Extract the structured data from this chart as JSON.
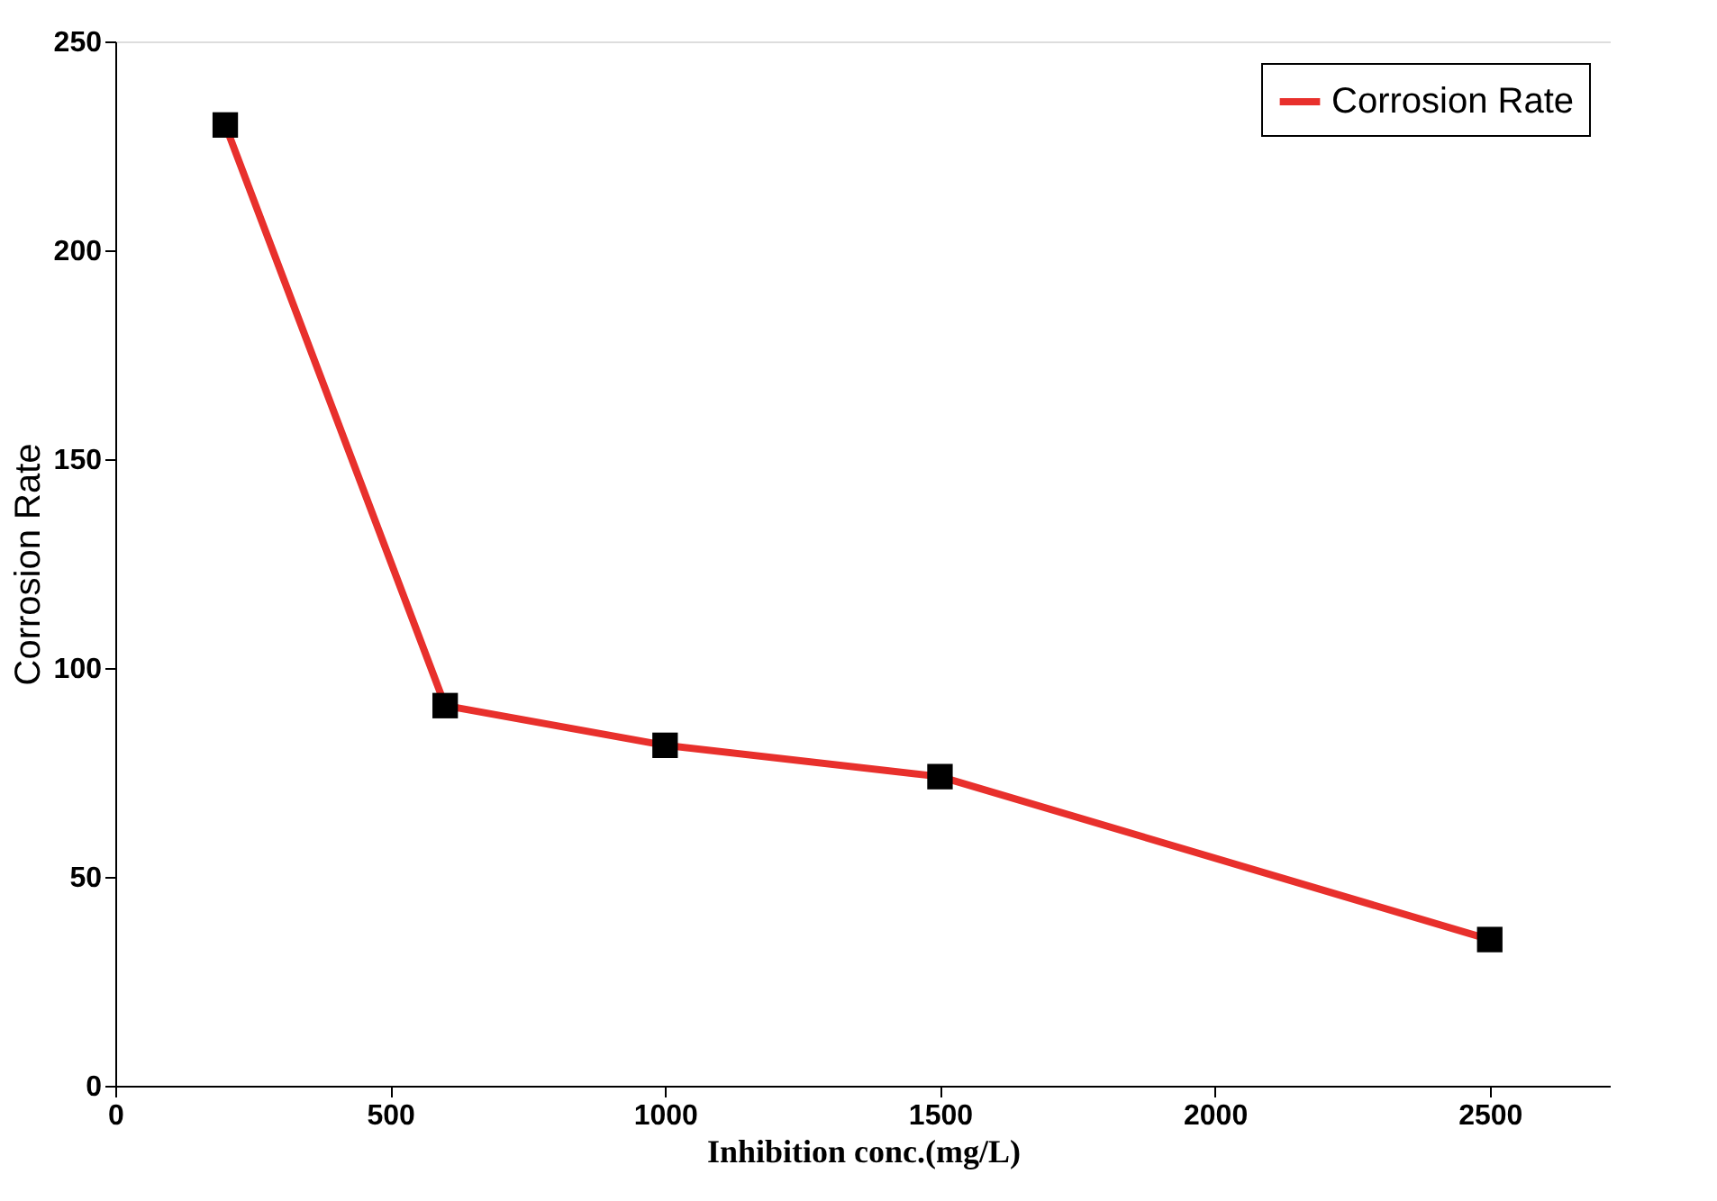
{
  "chart_data": {
    "type": "line",
    "xlabel": "Inhibition conc.(mg/L)",
    "ylabel": "Corrosion Rate",
    "x": [
      200,
      600,
      1000,
      1500,
      2500
    ],
    "series": [
      {
        "name": "Corrosion Rate",
        "color": "#e8302c",
        "values": [
          230,
          91,
          81.5,
          74,
          35
        ]
      }
    ],
    "xlim": [
      0,
      2720
    ],
    "xticks": [
      0,
      500,
      1000,
      1500,
      2000,
      2500
    ],
    "ylim": [
      0,
      250
    ],
    "yticks": [
      0,
      50,
      100,
      150,
      200,
      250
    ],
    "marker": "square",
    "line_style": "solid",
    "grid": false,
    "legend": "top right"
  }
}
